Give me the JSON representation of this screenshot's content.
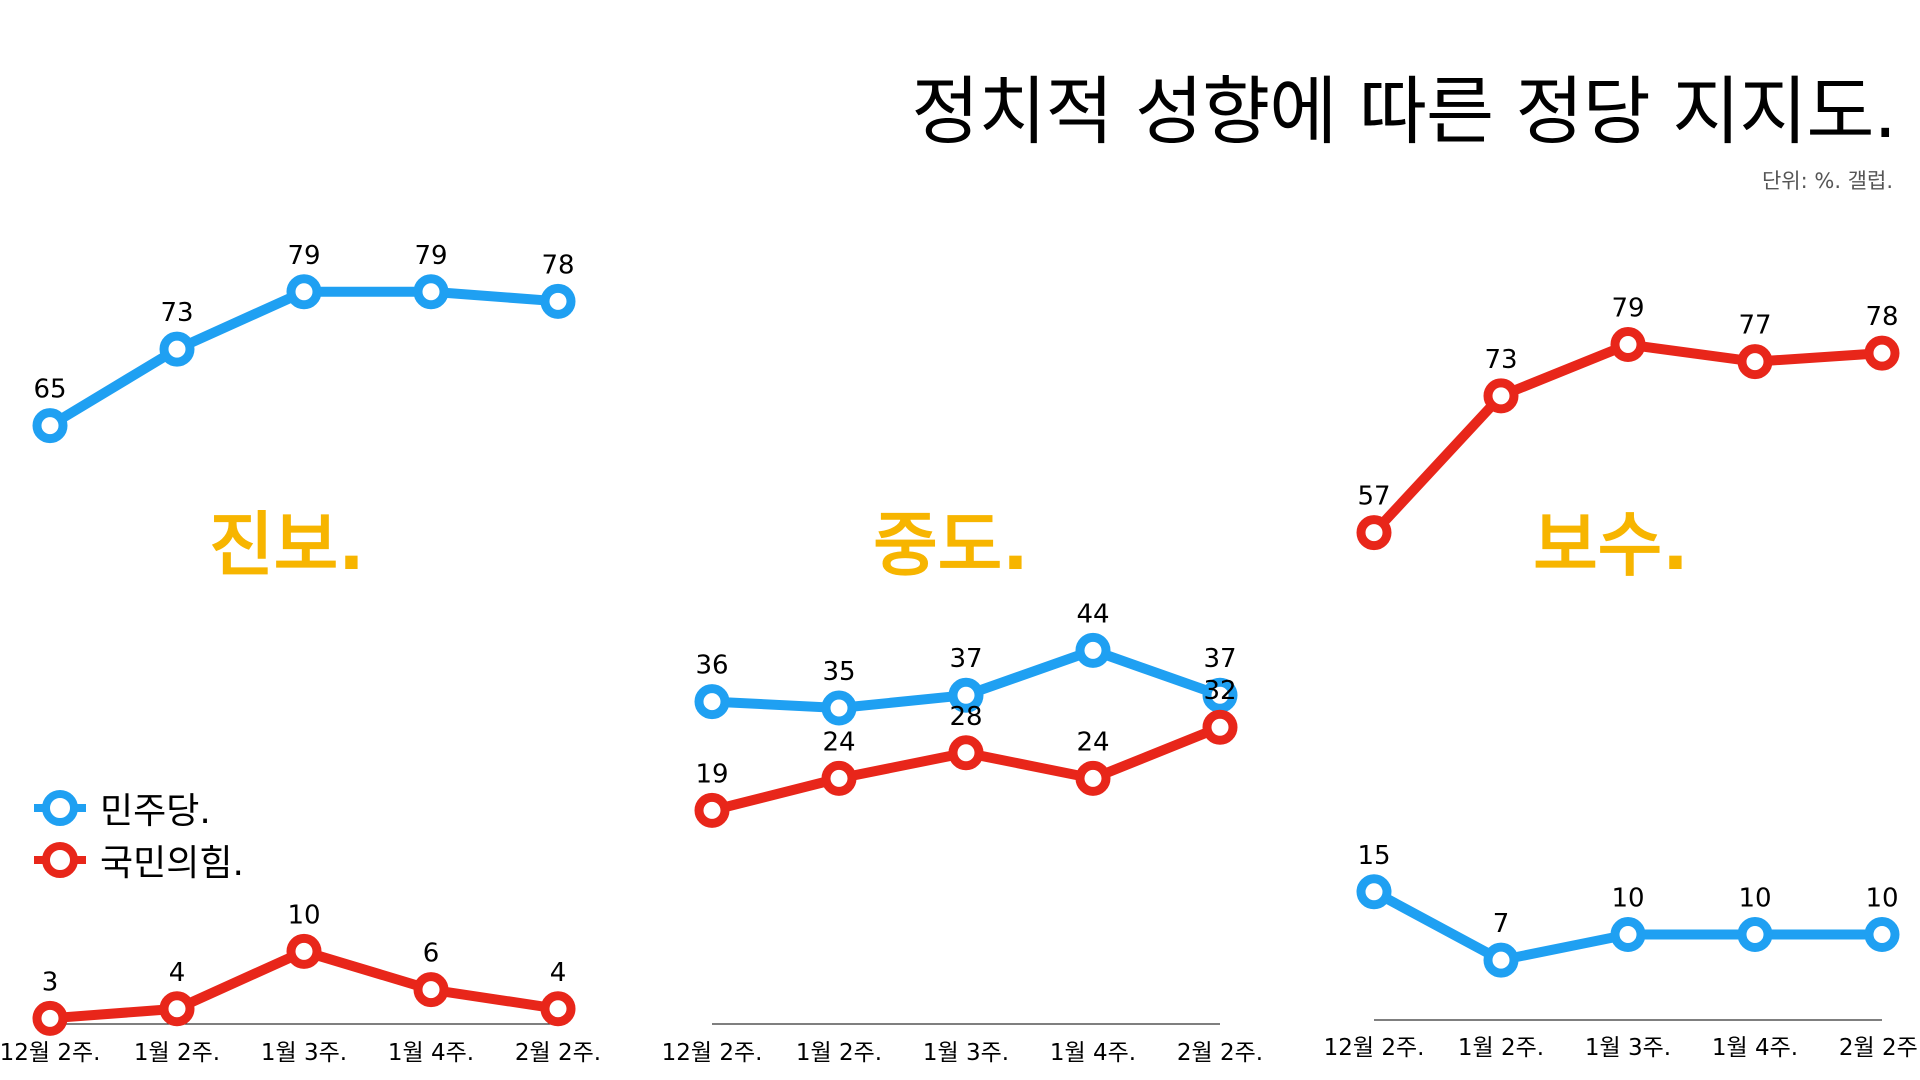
{
  "title": "정치적 성향에 따른 정당 지지도.",
  "subtitle": "단위: %. 갤럽.",
  "legend": [
    {
      "name": "민주당.",
      "color": "#1fa0f2"
    },
    {
      "name": "국민의힘.",
      "color": "#e8261a"
    }
  ],
  "colors": {
    "section_label": "#f7b500",
    "axis": "#333333"
  },
  "chart_data": [
    {
      "type": "line",
      "title": "진보.",
      "categories": [
        "12월 2주.",
        "1월 2주.",
        "1월 3주.",
        "1월 4주.",
        "2월 2주."
      ],
      "series": [
        {
          "name": "민주당.",
          "values": [
            65,
            73,
            79,
            79,
            78
          ]
        },
        {
          "name": "국민의힘.",
          "values": [
            3,
            4,
            10,
            6,
            4
          ]
        }
      ],
      "ylim": [
        0,
        100
      ]
    },
    {
      "type": "line",
      "title": "중도.",
      "categories": [
        "12월 2주.",
        "1월 2주.",
        "1월 3주.",
        "1월 4주.",
        "2월 2주."
      ],
      "series": [
        {
          "name": "민주당.",
          "values": [
            36,
            35,
            37,
            44,
            37
          ]
        },
        {
          "name": "국민의힘.",
          "values": [
            19,
            24,
            28,
            24,
            32
          ]
        }
      ],
      "ylim": [
        0,
        100
      ]
    },
    {
      "type": "line",
      "title": "보수.",
      "categories": [
        "12월 2주.",
        "1월 2주.",
        "1월 3주.",
        "1월 4주.",
        "2월 2주."
      ],
      "series": [
        {
          "name": "민주당.",
          "values": [
            15,
            7,
            10,
            10,
            10
          ]
        },
        {
          "name": "국민의힘.",
          "values": [
            57,
            73,
            79,
            77,
            78
          ]
        }
      ],
      "ylim": [
        0,
        100
      ]
    }
  ]
}
